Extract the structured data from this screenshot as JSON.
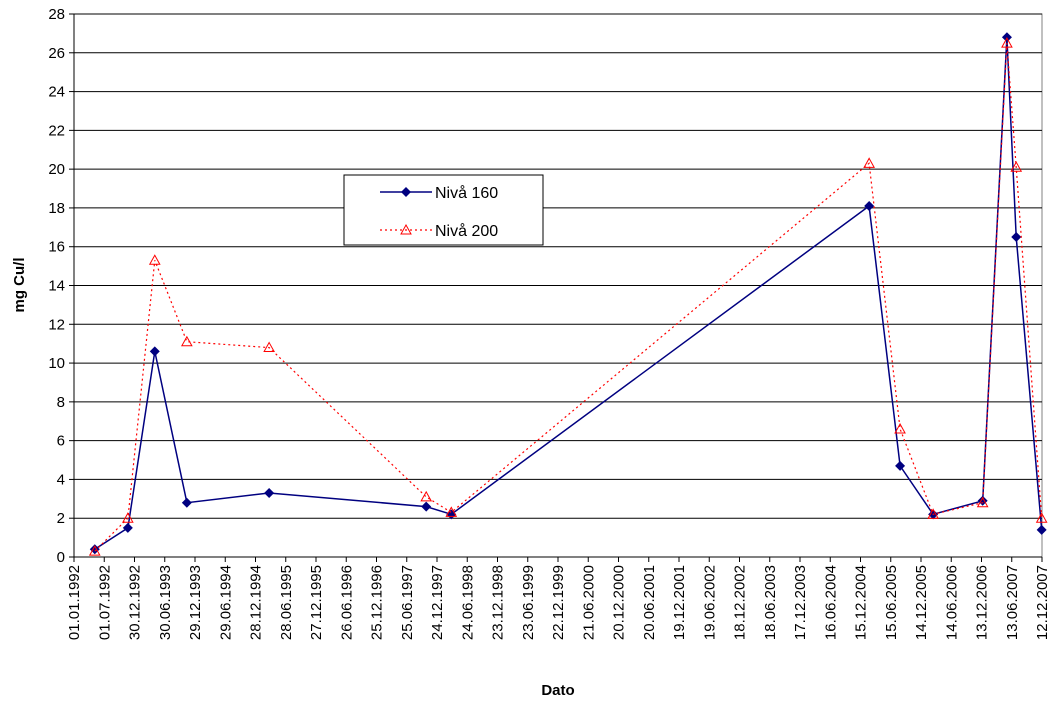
{
  "chart_data": {
    "type": "line",
    "xlabel": "Dato",
    "ylabel": "mg Cu/l",
    "ylim": [
      0,
      28
    ],
    "y_ticks": [
      "0",
      "2",
      "4",
      "6",
      "8",
      "10",
      "12",
      "14",
      "16",
      "18",
      "20",
      "22",
      "24",
      "26",
      "28"
    ],
    "x_range": [
      "1992-01-01",
      "2007-12-12"
    ],
    "x_tick_labels": [
      "01.01.1992",
      "01.07.1992",
      "30.12.1992",
      "30.06.1993",
      "29.12.1993",
      "29.06.1994",
      "28.12.1994",
      "28.06.1995",
      "27.12.1995",
      "26.06.1996",
      "25.12.1996",
      "25.06.1997",
      "24.12.1997",
      "24.06.1998",
      "23.12.1998",
      "23.06.1999",
      "22.12.1999",
      "21.06.2000",
      "20.12.2000",
      "20.06.2001",
      "19.12.2001",
      "19.06.2002",
      "18.12.2002",
      "18.06.2003",
      "17.12.2003",
      "16.06.2004",
      "15.12.2004",
      "15.06.2005",
      "14.12.2005",
      "14.06.2006",
      "13.12.2006",
      "13.06.2007",
      "12.12.2007"
    ],
    "grid": "horizontal",
    "legend_position": "upper-left-center",
    "series": [
      {
        "name": "Nivå 160",
        "color": "#000080",
        "line": "solid",
        "marker": "diamond",
        "points": [
          {
            "x": "1992-05-05",
            "y": 0.4
          },
          {
            "x": "1992-11-20",
            "y": 1.5
          },
          {
            "x": "1993-05-01",
            "y": 10.6
          },
          {
            "x": "1993-11-10",
            "y": 2.8
          },
          {
            "x": "1995-03-20",
            "y": 3.3
          },
          {
            "x": "1997-10-20",
            "y": 2.6
          },
          {
            "x": "1998-03-20",
            "y": 2.2
          },
          {
            "x": "2005-02-05",
            "y": 18.1
          },
          {
            "x": "2005-08-10",
            "y": 4.7
          },
          {
            "x": "2006-02-25",
            "y": 2.2
          },
          {
            "x": "2006-12-20",
            "y": 2.9
          },
          {
            "x": "2007-05-15",
            "y": 26.8
          },
          {
            "x": "2007-07-10",
            "y": 16.5
          },
          {
            "x": "2007-12-10",
            "y": 1.4
          }
        ]
      },
      {
        "name": "Nivå 200",
        "color": "#FF0000",
        "line": "dotted",
        "marker": "triangle-open",
        "points": [
          {
            "x": "1992-05-05",
            "y": 0.3
          },
          {
            "x": "1992-11-20",
            "y": 2.0
          },
          {
            "x": "1993-05-01",
            "y": 15.3
          },
          {
            "x": "1993-11-10",
            "y": 11.1
          },
          {
            "x": "1995-03-20",
            "y": 10.8
          },
          {
            "x": "1997-10-20",
            "y": 3.1
          },
          {
            "x": "1998-03-20",
            "y": 2.3
          },
          {
            "x": "2005-02-05",
            "y": 20.3
          },
          {
            "x": "2005-08-10",
            "y": 6.6
          },
          {
            "x": "2006-02-25",
            "y": 2.2
          },
          {
            "x": "2006-12-20",
            "y": 2.8
          },
          {
            "x": "2007-05-15",
            "y": 26.5
          },
          {
            "x": "2007-07-10",
            "y": 20.1
          },
          {
            "x": "2007-12-10",
            "y": 2.0
          }
        ]
      }
    ]
  }
}
